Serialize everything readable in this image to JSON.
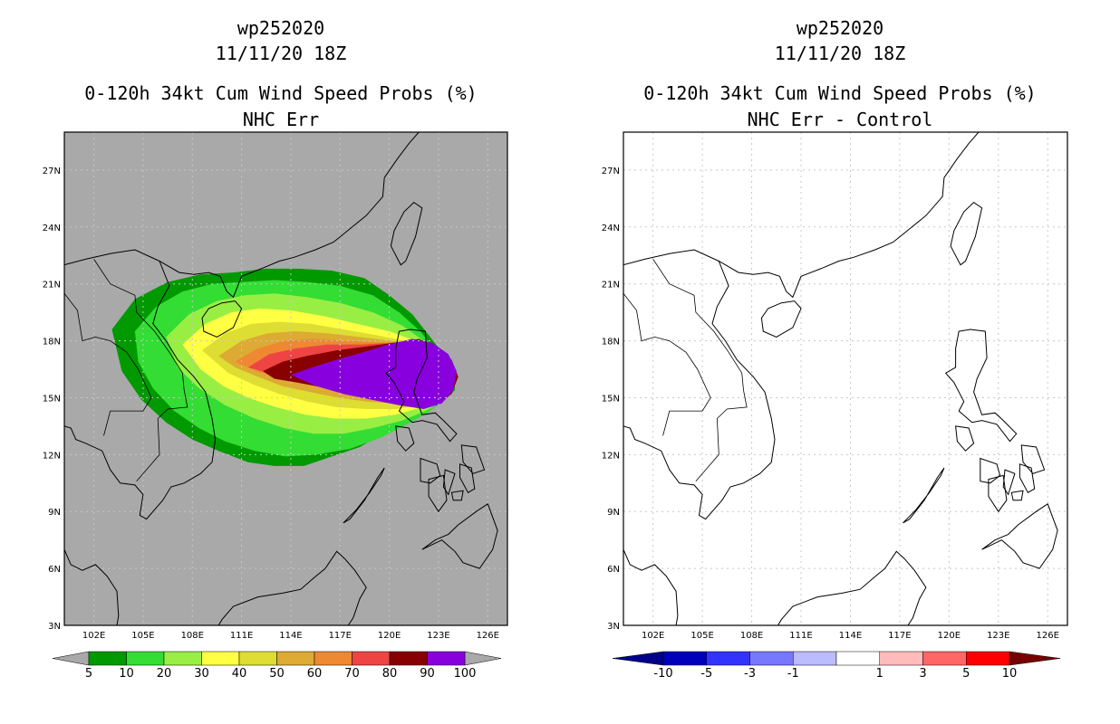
{
  "panels": [
    {
      "id": "left",
      "title1": "wp252020",
      "title2": "11/11/20 18Z",
      "title3": "0-120h 34kt Cum Wind Speed Probs (%)",
      "title4": "NHC Err",
      "background": "#a9a9a9"
    },
    {
      "id": "right",
      "title1": "wp252020",
      "title2": "11/11/20 18Z",
      "title3": "0-120h 34kt Cum Wind Speed Probs (%)",
      "title4": "NHC Err - Control",
      "background": "#ffffff"
    }
  ],
  "lat_labels": [
    "27N",
    "24N",
    "21N",
    "18N",
    "15N",
    "12N",
    "9N",
    "6N",
    "3N"
  ],
  "lon_labels": [
    "102E",
    "105E",
    "108E",
    "111E",
    "114E",
    "117E",
    "120E",
    "123E",
    "126E"
  ],
  "map_features": {
    "coastlines_color": "#000000",
    "gridlines_color": "#c8c8c8"
  },
  "left_colorbar": {
    "colors": [
      "#009900",
      "#33dd33",
      "#99ee44",
      "#ffff44",
      "#dddd33",
      "#ddaa33",
      "#ee8833",
      "#ee4444",
      "#880000",
      "#8800dd"
    ],
    "end_left_color": "#a9a9a9",
    "end_right_color": "#a9a9a9",
    "labels": [
      "5",
      "10",
      "20",
      "30",
      "40",
      "50",
      "60",
      "70",
      "80",
      "90",
      "100"
    ]
  },
  "right_colorbar": {
    "colors": [
      "#0000bb",
      "#3333ff",
      "#7777ff",
      "#bbbbff",
      "#ffffff",
      "#ffbbbb",
      "#ff6666",
      "#ff0000"
    ],
    "end_left_color": "#000088",
    "end_right_color": "#770000",
    "labels": [
      "-10",
      "-5",
      "-3",
      "-1",
      "1",
      "3",
      "5",
      "10"
    ]
  },
  "probability_field": {
    "levels": [
      5,
      10,
      20,
      30,
      40,
      50,
      60,
      70,
      80,
      90
    ],
    "description_center_lat": 15.5,
    "description_center_lon": 118
  }
}
